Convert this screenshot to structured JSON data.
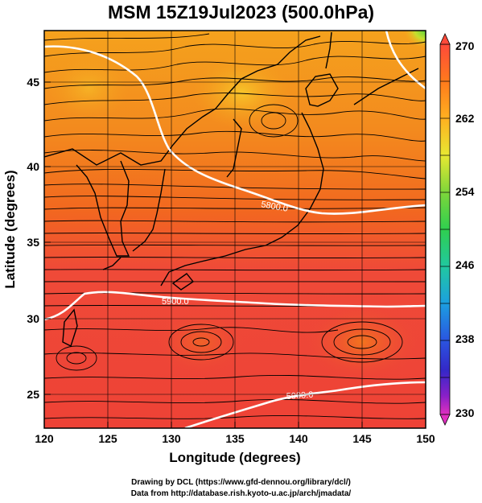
{
  "title": "MSM 15Z19Jul2023 (500.0hPa)",
  "x_axis_label": "Longitude (degrees)",
  "y_axis_label": "Latitude  (degrees)",
  "x_ticks": [
    "120",
    "125",
    "130",
    "135",
    "140",
    "145",
    "150"
  ],
  "y_ticks": [
    "25",
    "30",
    "35",
    "40",
    "45"
  ],
  "colorbar_labels": [
    "270",
    "262",
    "254",
    "246",
    "238",
    "230"
  ],
  "contour_labels": [
    "5800.0",
    "5900.0",
    "5900.0"
  ],
  "footer_line1": "Drawing by DCL (https://www.gfd-dennou.org/library/dcl/)",
  "footer_line2": "Data from http://database.rish.kyoto-u.ac.jp/arch/jmadata/",
  "colors": {
    "warm_red": "#ee4a3a",
    "orange": "#f2801e",
    "yellow_orange": "#f5b020",
    "green": "#6fd43a",
    "contour": "#ffffff",
    "streamline": "#000000"
  },
  "colorbar_stops": [
    "#ff4a3a",
    "#ff7a1c",
    "#ffb020",
    "#e8e832",
    "#7ed63a",
    "#2fcf4f",
    "#21c8a0",
    "#1c9fe0",
    "#2a55e0",
    "#3428c8",
    "#8a20c8",
    "#e030c0"
  ]
}
